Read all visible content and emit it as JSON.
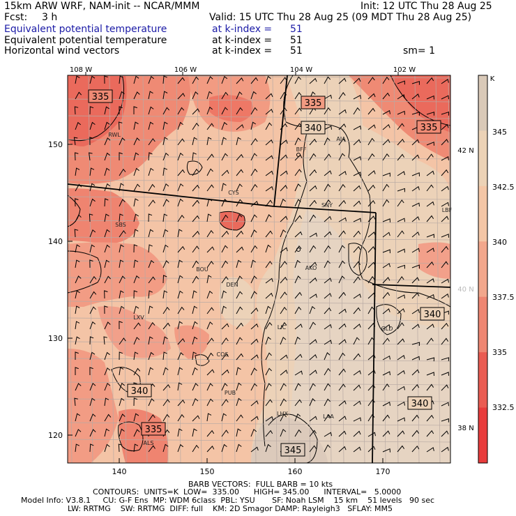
{
  "header": {
    "model_title": "15km ARW WRF, NAM-init -- NCAR/MMM",
    "init_time": "Init: 12 UTC Thu 28 Aug 25",
    "fcst_label": "Fcst:",
    "fcst_value": "3 h",
    "valid_time": "Valid: 15 UTC Thu 28 Aug 25 (09 MDT Thu 28 Aug 25)",
    "fields": [
      {
        "name": "Equivalent potential temperature",
        "level": "at k-index =",
        "index": "51",
        "extra": "",
        "color": "#1a1aa6"
      },
      {
        "name": "Equivalent potential temperature",
        "level": "at k-index =",
        "index": "51",
        "extra": "",
        "color": "#000000"
      },
      {
        "name": "Horizontal wind vectors",
        "level": "at k-index =",
        "index": "51",
        "extra": "sm= 1",
        "color": "#000000"
      }
    ]
  },
  "map": {
    "top_lon_labels": [
      "108 W",
      "106 W",
      "104 W",
      "102 W"
    ],
    "left_grid_labels": [
      "150",
      "140",
      "130",
      "120"
    ],
    "bottom_grid_labels": [
      "140",
      "150",
      "160",
      "170"
    ],
    "right_lat_labels": [
      {
        "text": "42 N",
        "color": "#000000"
      },
      {
        "text": "40 N",
        "color": "#bbbbbb"
      },
      {
        "text": "38 N",
        "color": "#000000"
      }
    ],
    "contour_labels": [
      "335",
      "335",
      "340",
      "335",
      "340",
      "340",
      "335",
      "340",
      "345"
    ],
    "stations": [
      "RWL",
      "BFF",
      "AIA",
      "CYS",
      "SNY",
      "LBF",
      "SBS",
      "BOU",
      "AKO",
      "DEN",
      "LXV",
      "LIC",
      "GLD",
      "COS",
      "PUB",
      "LHX",
      "LAA",
      "ALS"
    ]
  },
  "colorbar": {
    "unit": "K",
    "labels": [
      "345",
      "342.5",
      "340",
      "337.5",
      "335",
      "332.5"
    ],
    "colors": [
      "#d9c9b8",
      "#ecd2b6",
      "#f4c6a6",
      "#f2a78c",
      "#ee8672",
      "#ea5c52",
      "#e83c3c"
    ]
  },
  "colors": {
    "fill_warm": "#f4c4a6",
    "fill_cool": "#e9d3be",
    "fill_red": "#ef7a68",
    "wind_barb": "#000000"
  },
  "footer": {
    "barb_info": "BARB VECTORS:  FULL BARB = 10 kts",
    "contour_info": "CONTOURS:  UNITS=K  LOW=  335.00      HIGH= 345.00      INTERVAL=   5.0000",
    "model_info_1": "Model Info: V3.8.1     CU: G-F Ens  MP: WDM 6class  PBL: YSU       SF: Noah LSM    15 km    51 levels   90 sec",
    "model_info_2": "LW: RRTMG    SW: RRTMG  DIFF: full    KM: 2D Smagor DAMP: Rayleigh3   SFLAY: MM5"
  }
}
